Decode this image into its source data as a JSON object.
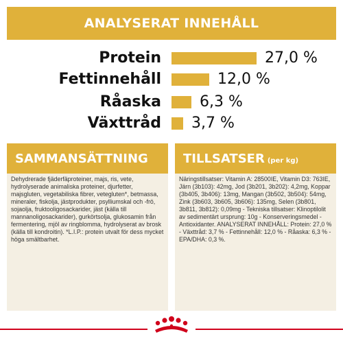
{
  "colors": {
    "accent": "#e0b13a",
    "panel": "#f4efe3",
    "brand_red": "#d0021b",
    "text": "#111111"
  },
  "header": {
    "title": "ANALYSERAT INNEHÅLL"
  },
  "nutrients": [
    {
      "name": "Protein",
      "value": "27,0 %",
      "amount": 27.0
    },
    {
      "name": "Fettinnehåll",
      "value": "12,0 %",
      "amount": 12.0
    },
    {
      "name": "Råaska",
      "value": "6,3 %",
      "amount": 6.3
    },
    {
      "name": "Växttråd",
      "value": "3,7 %",
      "amount": 3.7
    }
  ],
  "composition": {
    "title": "SAMMANSÄTTNING",
    "text": "Dehydrerade fjäderfäproteiner, majs, ris, vete, hydrolyserade animaliska proteiner, djurfetter, majsgluten, vegetabiliska fibrer, vetegluten*, betmassa, mineraler, fiskolja, jästprodukter, psylliumskal och -frö, sojaolja, fruktooligosackarider, jäst (källa till mannanoligosackarider), gurkörtsolja, glukosamin från fermentering, mjöl av ringblomma, hydrolyserat av brosk (källa till kondroitin). *L.I.P.: protein utvalt för dess mycket höga smältbarhet."
  },
  "additives": {
    "title": "TILLSATSER",
    "subtitle": "(per kg)",
    "text": "Näringstillsatser: Vitamin A: 28500IE, Vitamin D3: 763IE, Järn (3b103): 42mg, Jod (3b201, 3b202): 4,2mg, Koppar (3b405, 3b406): 13mg, Mangan (3b502, 3b504): 54mg, Zink (3b603, 3b605, 3b606): 135mg, Selen (3b801, 3b811, 3b812): 0,09mg - Tekniska tillsatser: Klinoptilolit av sedimentärt ursprung: 10g - Konserveringsmedel - Antioxidanter. ANALYSERAT INNEHÅLL: Protein: 27,0 % - Växttråd: 3,7 % - Fettinnehåll: 12,0 % - Råaska: 6,3 % - EPA/DHA: 0,3 %."
  },
  "footer": {
    "logo": "crown-logo-icon"
  }
}
